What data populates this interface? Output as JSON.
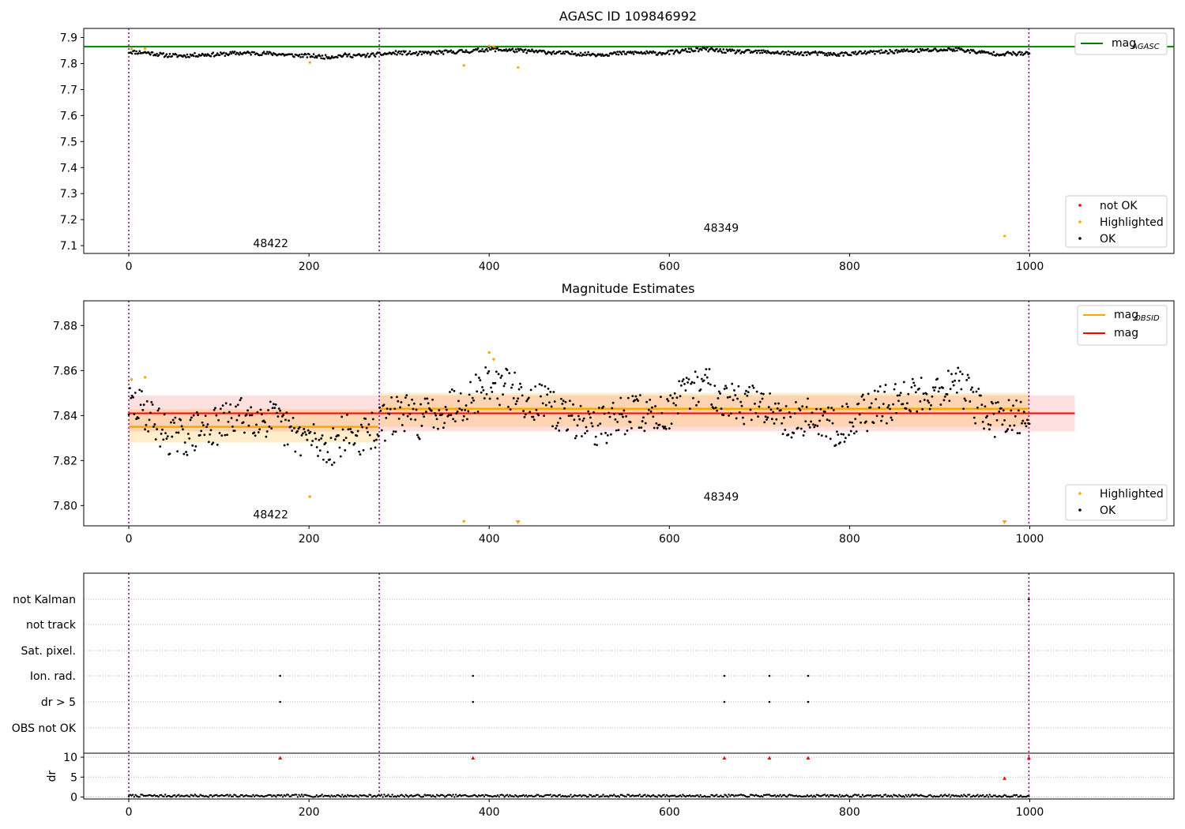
{
  "chart_data": [
    {
      "type": "scatter",
      "title": "AGASC ID 109846992",
      "xlim": [
        -50,
        1160
      ],
      "ylim": [
        7.07,
        7.935
      ],
      "xticks": [
        0,
        200,
        400,
        600,
        800,
        1000
      ],
      "yticks": [
        7.1,
        7.2,
        7.3,
        7.4,
        7.5,
        7.6,
        7.7,
        7.8,
        7.9
      ],
      "series": [
        {
          "name": "OK",
          "color": "#000000",
          "trend": [
            [
              0,
              7.845
            ],
            [
              20,
              7.842
            ],
            [
              40,
              7.832
            ],
            [
              60,
              7.83
            ],
            [
              80,
              7.834
            ],
            [
              100,
              7.835
            ],
            [
              120,
              7.84
            ],
            [
              140,
              7.84
            ],
            [
              160,
              7.838
            ],
            [
              180,
              7.832
            ],
            [
              200,
              7.83
            ],
            [
              220,
              7.825
            ],
            [
              240,
              7.832
            ],
            [
              260,
              7.83
            ],
            [
              277,
              7.835
            ],
            [
              300,
              7.842
            ],
            [
              320,
              7.838
            ],
            [
              340,
              7.842
            ],
            [
              360,
              7.845
            ],
            [
              380,
              7.848
            ],
            [
              400,
              7.855
            ],
            [
              420,
              7.852
            ],
            [
              440,
              7.848
            ],
            [
              460,
              7.845
            ],
            [
              480,
              7.84
            ],
            [
              500,
              7.838
            ],
            [
              520,
              7.835
            ],
            [
              540,
              7.838
            ],
            [
              560,
              7.842
            ],
            [
              580,
              7.84
            ],
            [
              600,
              7.842
            ],
            [
              620,
              7.85
            ],
            [
              640,
              7.855
            ],
            [
              660,
              7.848
            ],
            [
              680,
              7.845
            ],
            [
              700,
              7.845
            ],
            [
              720,
              7.842
            ],
            [
              740,
              7.838
            ],
            [
              760,
              7.84
            ],
            [
              780,
              7.835
            ],
            [
              800,
              7.838
            ],
            [
              820,
              7.842
            ],
            [
              840,
              7.845
            ],
            [
              860,
              7.848
            ],
            [
              880,
              7.85
            ],
            [
              900,
              7.852
            ],
            [
              920,
              7.855
            ],
            [
              940,
              7.845
            ],
            [
              960,
              7.838
            ],
            [
              980,
              7.838
            ],
            [
              1000,
              7.838
            ]
          ],
          "noise": 0.009
        },
        {
          "name": "Highlighted",
          "color": "#ffa500",
          "points": [
            [
              3,
              7.856
            ],
            [
              18,
              7.857
            ],
            [
              201,
              7.804
            ],
            [
              372,
              7.793
            ],
            [
              400,
              7.868
            ],
            [
              405,
              7.865
            ],
            [
              432,
              7.785
            ],
            [
              972,
              7.137
            ]
          ]
        },
        {
          "name": "not OK",
          "color": "#ff0000",
          "points": []
        }
      ],
      "hlines": [
        {
          "y": 7.865,
          "color": "#008000",
          "name": "mag_AGASC"
        }
      ],
      "vlines": [
        0,
        278,
        999
      ],
      "annotations": [
        {
          "x": 138,
          "y": 7.1,
          "text": "48422"
        },
        {
          "x": 638,
          "y": 7.16,
          "text": "48349"
        }
      ],
      "legend_upper": {
        "label_main": "mag",
        "label_sub": "AGASC",
        "position": "upper right"
      },
      "legend_lower": [
        {
          "label": "not OK",
          "color": "#ff0000"
        },
        {
          "label": "Highlighted",
          "color": "#ffa500"
        },
        {
          "label": "OK",
          "color": "#000000"
        }
      ]
    },
    {
      "type": "scatter",
      "title": "Magnitude Estimates",
      "xlim": [
        -50,
        1160
      ],
      "ylim": [
        7.791,
        7.891
      ],
      "xticks": [
        0,
        200,
        400,
        600,
        800,
        1000
      ],
      "yticks": [
        7.8,
        7.82,
        7.84,
        7.86,
        7.88
      ],
      "mag": 7.841,
      "mag_band": [
        7.833,
        7.849
      ],
      "mag_band_xrange": [
        0,
        1050
      ],
      "obsid_segments": [
        {
          "x0": 0,
          "x1": 277,
          "mag": 7.835,
          "band": [
            7.828,
            7.843
          ],
          "label": "48422",
          "label_pos": [
            138,
            7.795
          ]
        },
        {
          "x0": 279,
          "x1": 999,
          "mag": 7.843,
          "band": [
            7.835,
            7.85
          ],
          "label": "48349",
          "label_pos": [
            638,
            7.803
          ]
        }
      ],
      "series": [
        {
          "name": "OK",
          "color": "#000000",
          "trend": [
            [
              0,
              7.845
            ],
            [
              20,
              7.842
            ],
            [
              40,
              7.832
            ],
            [
              60,
              7.83
            ],
            [
              80,
              7.834
            ],
            [
              100,
              7.835
            ],
            [
              120,
              7.84
            ],
            [
              140,
              7.84
            ],
            [
              160,
              7.838
            ],
            [
              180,
              7.832
            ],
            [
              200,
              7.83
            ],
            [
              220,
              7.825
            ],
            [
              240,
              7.832
            ],
            [
              260,
              7.83
            ],
            [
              277,
              7.835
            ],
            [
              300,
              7.842
            ],
            [
              320,
              7.838
            ],
            [
              340,
              7.842
            ],
            [
              360,
              7.845
            ],
            [
              380,
              7.848
            ],
            [
              400,
              7.855
            ],
            [
              420,
              7.852
            ],
            [
              440,
              7.848
            ],
            [
              460,
              7.845
            ],
            [
              480,
              7.84
            ],
            [
              500,
              7.838
            ],
            [
              520,
              7.835
            ],
            [
              540,
              7.838
            ],
            [
              560,
              7.842
            ],
            [
              580,
              7.84
            ],
            [
              600,
              7.842
            ],
            [
              620,
              7.85
            ],
            [
              640,
              7.855
            ],
            [
              660,
              7.848
            ],
            [
              680,
              7.845
            ],
            [
              700,
              7.845
            ],
            [
              720,
              7.842
            ],
            [
              740,
              7.838
            ],
            [
              760,
              7.84
            ],
            [
              780,
              7.835
            ],
            [
              800,
              7.838
            ],
            [
              820,
              7.842
            ],
            [
              840,
              7.845
            ],
            [
              860,
              7.848
            ],
            [
              880,
              7.85
            ],
            [
              900,
              7.852
            ],
            [
              920,
              7.855
            ],
            [
              940,
              7.845
            ],
            [
              960,
              7.838
            ],
            [
              980,
              7.838
            ],
            [
              1000,
              7.838
            ]
          ],
          "noise": 0.009
        },
        {
          "name": "Highlighted",
          "color": "#ffa500",
          "points": [
            [
              3,
              7.856
            ],
            [
              18,
              7.857
            ],
            [
              201,
              7.804
            ],
            [
              372,
              7.793
            ],
            [
              400,
              7.868
            ],
            [
              405,
              7.865
            ]
          ],
          "clipped_below": [
            432,
            972
          ]
        }
      ],
      "vlines": [
        0,
        278,
        999
      ],
      "legend_upper": [
        {
          "label_main": "mag",
          "label_sub": "OBSID",
          "color": "#ffa500"
        },
        {
          "label_main": "mag",
          "label_sub": "",
          "color": "#ff0000"
        }
      ],
      "legend_lower": [
        {
          "label": "Highlighted",
          "color": "#ffa500"
        },
        {
          "label": "OK",
          "color": "#000000"
        }
      ]
    },
    {
      "type": "scatter",
      "title": "",
      "flag_rows": [
        "not Kalman",
        "not track",
        "Sat. pixel.",
        "Ion. rad.",
        "dr > 5",
        "OBS not OK"
      ],
      "flag_points": {
        "Ion. rad.": [
          168,
          382,
          661,
          711,
          754
        ],
        "dr > 5": [
          168,
          382,
          661,
          711,
          754
        ],
        "not Kalman": [
          999
        ]
      },
      "dr_ylabel": "dr",
      "dr_yticks": [
        0,
        5,
        10
      ],
      "dr_ylim": [
        -0.5,
        11
      ],
      "dr_red_points": [
        [
          168,
          9.8
        ],
        [
          382,
          9.8
        ],
        [
          661,
          9.8
        ],
        [
          711,
          9.8
        ],
        [
          754,
          9.8
        ],
        [
          999,
          9.8
        ],
        [
          972,
          4.7
        ]
      ],
      "dr_baseline": 0.3,
      "xlim": [
        -50,
        1160
      ],
      "xticks": [
        0,
        200,
        400,
        600,
        800,
        1000
      ],
      "vlines": [
        0,
        278,
        999
      ]
    }
  ]
}
